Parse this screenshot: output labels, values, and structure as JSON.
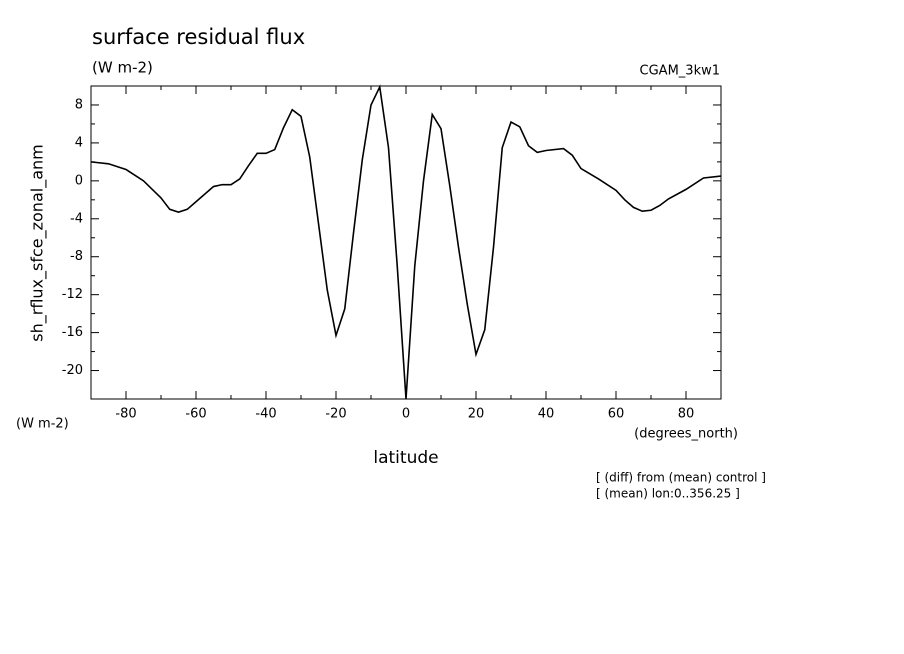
{
  "chart_data": {
    "type": "line",
    "title": "surface residual flux",
    "subtitle": "(W m-2)",
    "dataset": "CGAM_3kw1",
    "y_label": "sh_rflux_sfce_zonal_anm",
    "y_units": "(W m-2)",
    "x_label": "latitude",
    "x_units": "(degrees_north)",
    "notes": [
      "[ (diff) from (mean) control ]",
      "[ (mean) lon:0..356.25 ]"
    ],
    "x": [
      -90,
      -85,
      -80,
      -75,
      -70,
      -67.5,
      -65,
      -62.5,
      -60,
      -55,
      -52.5,
      -50,
      -47.5,
      -45,
      -42.5,
      -40,
      -37.5,
      -35,
      -32.5,
      -30,
      -27.5,
      -25,
      -22.5,
      -20,
      -17.5,
      -15,
      -12.5,
      -10,
      -7.5,
      -5,
      -2.5,
      0,
      2.5,
      5,
      7.5,
      10,
      12.5,
      15,
      17.5,
      20,
      22.5,
      25,
      27.5,
      30,
      32.5,
      35,
      37.5,
      40,
      45,
      47.5,
      50,
      55,
      60,
      62.5,
      65,
      67.5,
      70,
      72.5,
      75,
      80,
      85,
      90
    ],
    "series": [
      {
        "color": "#000000",
        "values": [
          2.0,
          1.8,
          1.2,
          0.0,
          -1.8,
          -3.0,
          -3.3,
          -3.0,
          -2.2,
          -0.6,
          -0.4,
          -0.4,
          0.2,
          1.6,
          2.9,
          2.9,
          3.3,
          5.6,
          7.5,
          6.8,
          2.5,
          -4.5,
          -11.5,
          -16.3,
          -13.5,
          -5.5,
          2.2,
          8.0,
          9.9,
          3.5,
          -9.0,
          -23,
          -9.0,
          0.0,
          7.0,
          5.5,
          -0.5,
          -7.0,
          -13.0,
          -18.3,
          -15.7,
          -7.0,
          3.5,
          6.2,
          5.7,
          3.7,
          3.0,
          3.2,
          3.4,
          2.7,
          1.3,
          0.2,
          -1.0,
          -2.0,
          -2.8,
          -3.2,
          -3.1,
          -2.6,
          -1.9,
          -0.9,
          0.3,
          0.5
        ]
      }
    ],
    "xlim": [
      -90,
      90
    ],
    "xticks": [
      -80,
      -60,
      -40,
      -20,
      0,
      20,
      40,
      60,
      80
    ],
    "ylim": [
      -23,
      10
    ],
    "yticks": [
      8,
      4,
      0,
      -4,
      -8,
      -12,
      -16,
      -20
    ]
  }
}
